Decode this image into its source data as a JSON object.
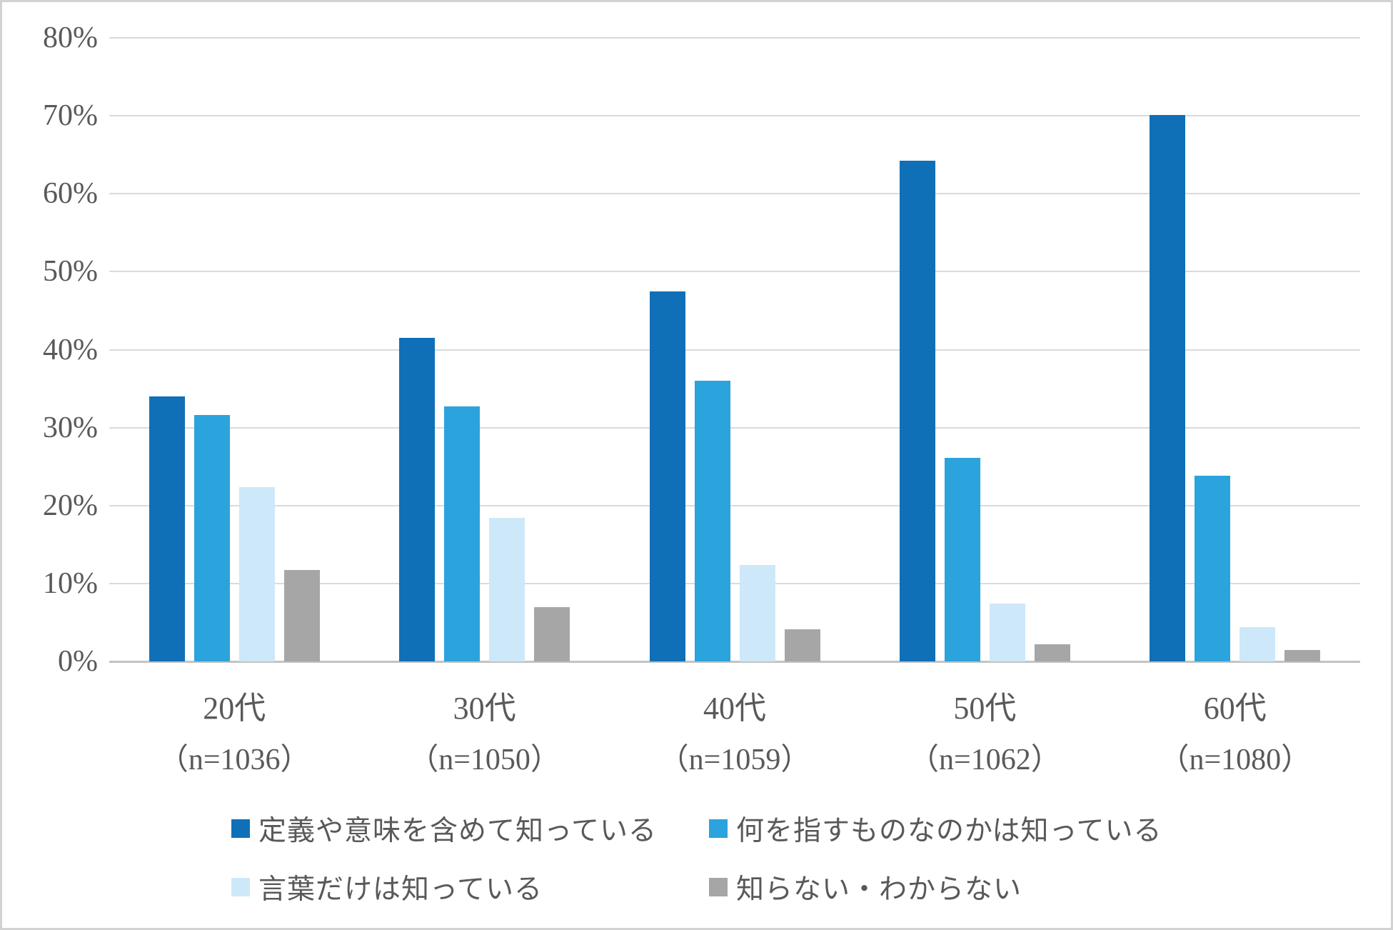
{
  "chart_data": {
    "type": "bar",
    "title": "",
    "xlabel": "",
    "ylabel": "",
    "categories": [
      "20代",
      "30代",
      "40代",
      "50代",
      "60代"
    ],
    "category_sublabels": [
      "（n=1036）",
      "（n=1050）",
      "（n=1059）",
      "（n=1062）",
      "（n=1080）"
    ],
    "series": [
      {
        "name": "定義や意味を含めて知っている",
        "color": "#0F70B8",
        "values": [
          34.0,
          41.5,
          47.5,
          64.2,
          70.1
        ]
      },
      {
        "name": "何を指すものなのかは知っている",
        "color": "#2BA3DC",
        "values": [
          31.6,
          32.7,
          36.0,
          26.1,
          23.8
        ]
      },
      {
        "name": "言葉だけは知っている",
        "color": "#CDE8F9",
        "values": [
          22.4,
          18.4,
          12.4,
          7.4,
          4.4
        ]
      },
      {
        "name": "知らない・わからない",
        "color": "#A6A6A6",
        "values": [
          11.7,
          7.0,
          4.1,
          2.2,
          1.5
        ]
      }
    ],
    "ylim": [
      0,
      80
    ],
    "ytick_step": 10,
    "ytick_labels": [
      "0%",
      "10%",
      "20%",
      "30%",
      "40%",
      "50%",
      "60%",
      "70%",
      "80%"
    ],
    "grid": true,
    "legend_position": "bottom",
    "colors": {
      "gridline": "#DADADA",
      "axis_baseline": "#C3C3C3",
      "text": "#595959",
      "background": "#FFFFFF"
    }
  }
}
